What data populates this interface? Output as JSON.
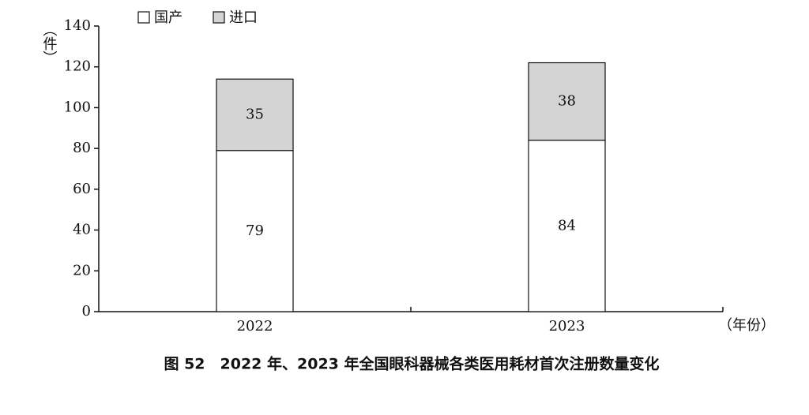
{
  "chart_data": {
    "type": "stacked_bar",
    "title": "图 52　2022 年、2023 年全国眼科器械各类医用耗材首次注册数量变化",
    "y_label": "（件）",
    "x_label": "（年份）",
    "categories": [
      "2022",
      "2023"
    ],
    "series": [
      {
        "name": "国产",
        "color": "#ffffff",
        "values": [
          79,
          84
        ]
      },
      {
        "name": "进口",
        "color": "#d4d4d4",
        "values": [
          35,
          38
        ]
      }
    ],
    "ylim": [
      0,
      140
    ],
    "yticks": [
      0,
      20,
      40,
      60,
      80,
      100,
      120,
      140
    ],
    "legend": "top-left"
  }
}
